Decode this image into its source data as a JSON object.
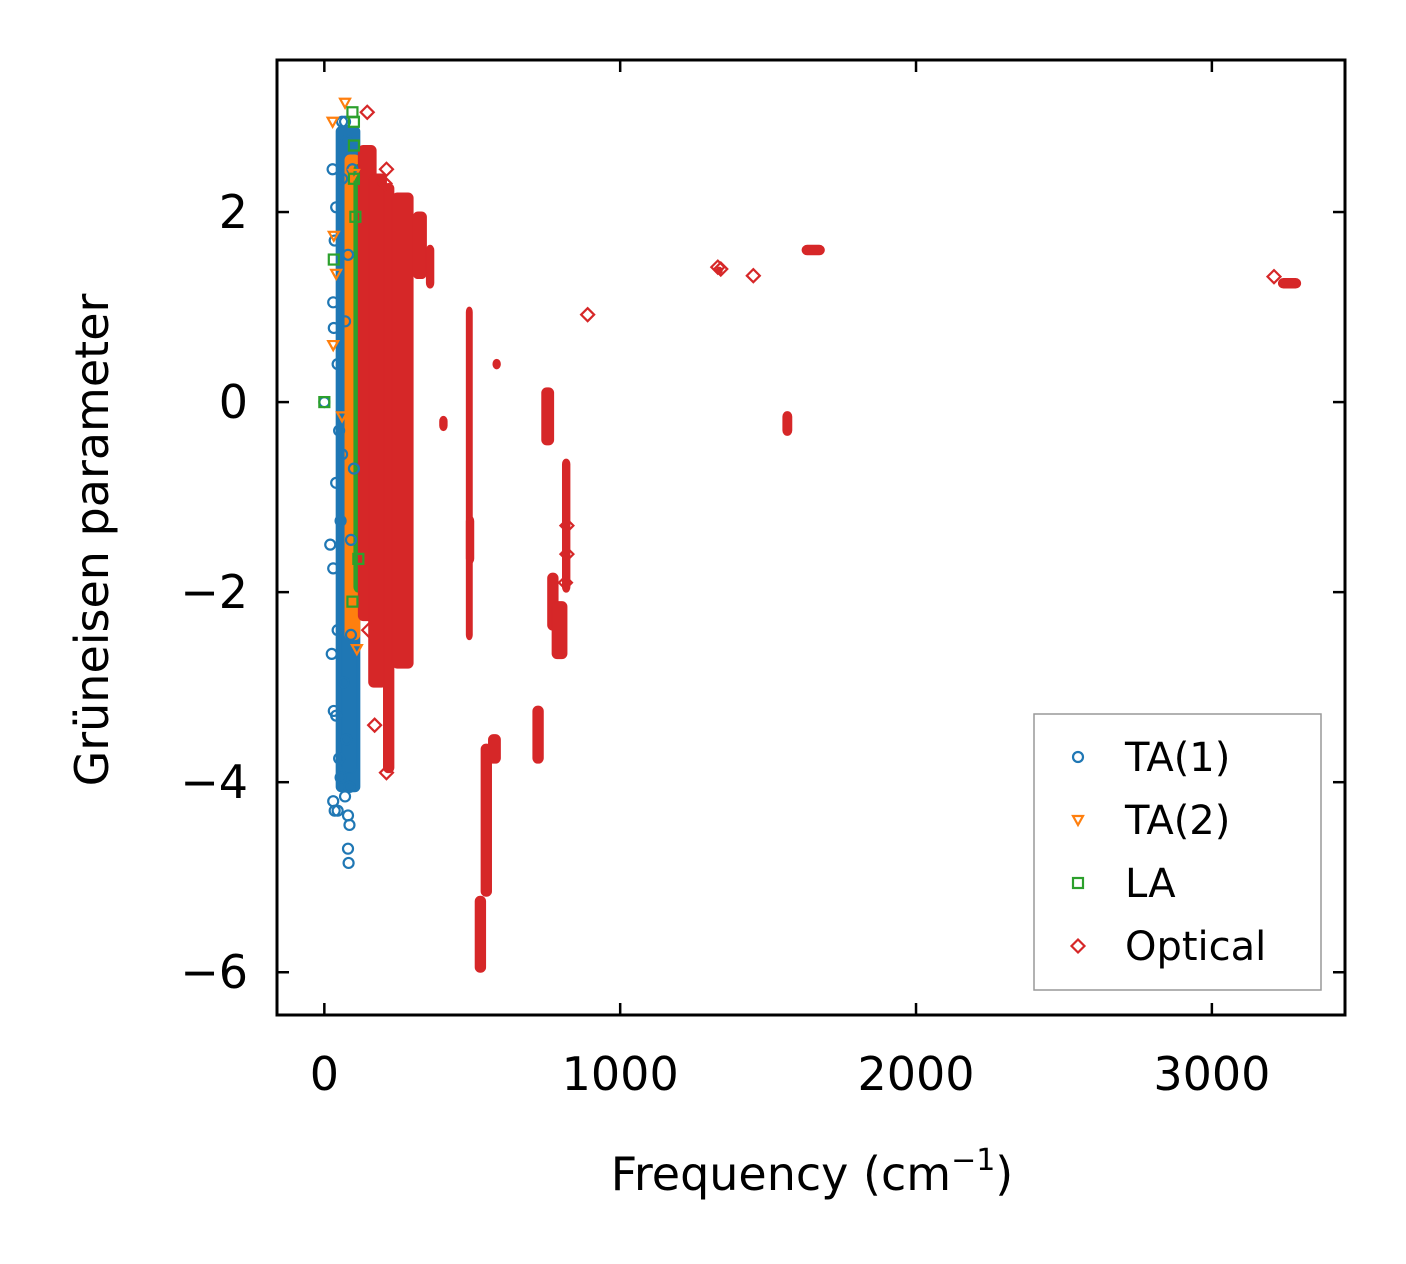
{
  "chart_data": {
    "type": "scatter",
    "title": "",
    "xlabel": "Frequency (cm",
    "xlabel_sup": "−1",
    "xlabel_end": ")",
    "ylabel": "Grüneisen parameter",
    "xlim": [
      -160,
      3450
    ],
    "ylim": [
      -6.45,
      3.6
    ],
    "xticks": [
      0,
      1000,
      2000,
      3000
    ],
    "xtick_labels": [
      "0",
      "1000",
      "2000",
      "3000"
    ],
    "yticks": [
      -6,
      -4,
      -2,
      0,
      2
    ],
    "ytick_labels": [
      "−6",
      "−4",
      "−2",
      "0",
      "2"
    ],
    "grid": false,
    "legend_position": "bottom-right",
    "series": [
      {
        "name": "TA(1)",
        "marker": "circle",
        "color": "#1f77b4",
        "points": [
          [
            0,
            0
          ],
          [
            28,
            2.45
          ],
          [
            30,
            1.05
          ],
          [
            32,
            0.78
          ],
          [
            20,
            -1.5
          ],
          [
            30,
            -1.75
          ],
          [
            25,
            -2.65
          ],
          [
            32,
            -3.25
          ],
          [
            40,
            -3.3
          ],
          [
            30,
            -4.2
          ],
          [
            35,
            -4.3
          ],
          [
            45,
            -4.3
          ],
          [
            80,
            -4.35
          ],
          [
            85,
            -4.45
          ],
          [
            80,
            -4.7
          ],
          [
            82,
            -4.85
          ],
          [
            60,
            2.95
          ],
          [
            70,
            2.95
          ],
          [
            40,
            2.05
          ],
          [
            35,
            1.7
          ],
          [
            45,
            0.4
          ],
          [
            50,
            -0.3
          ],
          [
            40,
            -0.85
          ],
          [
            55,
            -1.25
          ],
          [
            45,
            -2.4
          ],
          [
            50,
            -3.75
          ],
          [
            55,
            -3.95
          ],
          [
            70,
            -4.15
          ],
          [
            85,
            -4.05
          ],
          [
            65,
            -2.95
          ],
          [
            75,
            -3.55
          ],
          [
            90,
            -2.45
          ],
          [
            60,
            -0.55
          ],
          [
            70,
            0.85
          ],
          [
            80,
            1.55
          ],
          [
            60,
            2.35
          ],
          [
            75,
            2.75
          ],
          [
            95,
            2.45
          ],
          [
            90,
            -1.45
          ],
          [
            100,
            -0.7
          ]
        ],
        "bands": [
          [
            40,
            120,
            -4.1,
            2.9
          ],
          [
            60,
            110,
            -3.9,
            2.5
          ]
        ]
      },
      {
        "name": "TA(2)",
        "marker": "triangle-down",
        "color": "#ff7f0e",
        "points": [
          [
            28,
            2.95
          ],
          [
            70,
            3.15
          ],
          [
            32,
            1.75
          ],
          [
            40,
            1.35
          ],
          [
            30,
            0.6
          ],
          [
            60,
            -0.15
          ],
          [
            100,
            2.4
          ],
          [
            110,
            -2.6
          ]
        ],
        "bands": [
          [
            70,
            120,
            -2.5,
            2.6
          ]
        ]
      },
      {
        "name": "LA",
        "marker": "square",
        "color": "#2ca02c",
        "points": [
          [
            0,
            0
          ],
          [
            32,
            1.5
          ],
          [
            95,
            3.05
          ],
          [
            100,
            2.95
          ],
          [
            100,
            2.7
          ],
          [
            100,
            2.35
          ],
          [
            105,
            1.95
          ],
          [
            95,
            -2.1
          ],
          [
            115,
            -1.65
          ]
        ],
        "bands": [
          [
            100,
            130,
            -2.0,
            2.5
          ]
        ]
      },
      {
        "name": "Optical",
        "marker": "diamond",
        "color": "#d62728",
        "points": [
          [
            145,
            3.05
          ],
          [
            210,
            2.45
          ],
          [
            205,
            2.3
          ],
          [
            210,
            -3.9
          ],
          [
            1340,
            1.4
          ],
          [
            1450,
            1.33
          ],
          [
            890,
            0.92
          ],
          [
            1330,
            1.42
          ],
          [
            3210,
            1.32
          ],
          [
            820,
            -1.3
          ],
          [
            820,
            -1.6
          ],
          [
            815,
            -1.9
          ],
          [
            150,
            -2.4
          ],
          [
            170,
            -3.4
          ]
        ],
        "bands": [
          [
            115,
            175,
            -2.3,
            2.7
          ],
          [
            150,
            210,
            -3.0,
            2.4
          ],
          [
            200,
            235,
            -3.9,
            2.3
          ],
          [
            230,
            300,
            -2.8,
            2.2
          ],
          [
            300,
            345,
            1.3,
            2.0
          ],
          [
            345,
            370,
            1.2,
            1.65
          ],
          [
            390,
            415,
            -0.3,
            -0.15
          ],
          [
            480,
            500,
            -2.5,
            1.0
          ],
          [
            480,
            505,
            -1.7,
            -1.2
          ],
          [
            510,
            545,
            -6.0,
            -5.2
          ],
          [
            530,
            565,
            -5.2,
            -3.6
          ],
          [
            570,
            595,
            0.35,
            0.45
          ],
          [
            555,
            595,
            -3.8,
            -3.5
          ],
          [
            705,
            740,
            -3.8,
            -3.2
          ],
          [
            735,
            775,
            -0.45,
            0.15
          ],
          [
            755,
            790,
            -2.4,
            -1.8
          ],
          [
            770,
            820,
            -2.7,
            -2.1
          ],
          [
            805,
            830,
            -2.0,
            -0.6
          ],
          [
            1325,
            1345,
            1.35,
            1.42
          ],
          [
            1550,
            1580,
            -0.35,
            -0.1
          ],
          [
            1615,
            1690,
            1.55,
            1.65
          ],
          [
            3225,
            3300,
            1.2,
            1.3
          ]
        ]
      }
    ]
  }
}
